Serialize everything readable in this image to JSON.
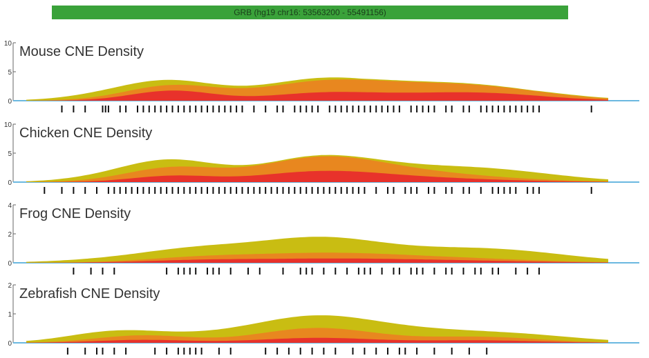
{
  "header": {
    "title": "GRB (hg19 chr16: 53563200 - 55491156)"
  },
  "colors": {
    "header_bg": "#3aa23a",
    "red": "#e8322b",
    "orange": "#e8871f",
    "yellow": "#c9bd12",
    "baseline": "#6ab8e0",
    "cne_mark": "#111111"
  },
  "chart_data": [
    {
      "type": "area",
      "title": "Mouse CNE Density",
      "ylim": [
        0,
        10
      ],
      "yticks": [
        "10",
        "5",
        "0"
      ],
      "x": [
        0,
        0.25,
        0.5,
        0.75,
        1
      ],
      "peaks": {
        "red": [
          [
            0.25,
            0.2,
            0.07
          ],
          [
            0.5,
            0.08,
            0.08
          ],
          [
            0.62,
            0.12,
            0.15
          ],
          [
            0.8,
            0.1,
            0.1
          ]
        ],
        "orange": [
          [
            0.25,
            0.3,
            0.08
          ],
          [
            0.5,
            0.25,
            0.1
          ],
          [
            0.62,
            0.2,
            0.15
          ],
          [
            0.78,
            0.2,
            0.12
          ]
        ],
        "yellow": [
          [
            0.15,
            0.1,
            0.08
          ],
          [
            0.25,
            0.35,
            0.08
          ],
          [
            0.5,
            0.3,
            0.1
          ],
          [
            0.62,
            0.2,
            0.16
          ],
          [
            0.8,
            0.18,
            0.12
          ]
        ]
      },
      "cne_marks": [
        0.06,
        0.08,
        0.1,
        0.13,
        0.135,
        0.14,
        0.16,
        0.17,
        0.19,
        0.2,
        0.21,
        0.22,
        0.23,
        0.24,
        0.25,
        0.26,
        0.27,
        0.28,
        0.29,
        0.3,
        0.31,
        0.32,
        0.33,
        0.34,
        0.35,
        0.36,
        0.37,
        0.39,
        0.41,
        0.43,
        0.44,
        0.46,
        0.47,
        0.48,
        0.49,
        0.5,
        0.52,
        0.53,
        0.54,
        0.55,
        0.56,
        0.57,
        0.58,
        0.59,
        0.6,
        0.61,
        0.62,
        0.63,
        0.64,
        0.66,
        0.67,
        0.68,
        0.69,
        0.7,
        0.72,
        0.73,
        0.75,
        0.76,
        0.78,
        0.79,
        0.8,
        0.81,
        0.82,
        0.83,
        0.84,
        0.85,
        0.86,
        0.87,
        0.88,
        0.97
      ]
    },
    {
      "type": "area",
      "title": "Chicken CNE Density",
      "ylim": [
        0,
        10
      ],
      "yticks": [
        "10",
        "5",
        "0"
      ],
      "x": [
        0,
        0.25,
        0.5,
        0.75,
        1
      ],
      "peaks": {
        "red": [
          [
            0.25,
            0.12,
            0.07
          ],
          [
            0.5,
            0.15,
            0.1
          ],
          [
            0.62,
            0.1,
            0.16
          ]
        ],
        "orange": [
          [
            0.25,
            0.28,
            0.08
          ],
          [
            0.5,
            0.35,
            0.1
          ],
          [
            0.62,
            0.22,
            0.16
          ]
        ],
        "yellow": [
          [
            0.15,
            0.08,
            0.08
          ],
          [
            0.25,
            0.4,
            0.08
          ],
          [
            0.5,
            0.4,
            0.1
          ],
          [
            0.65,
            0.2,
            0.16
          ],
          [
            0.8,
            0.15,
            0.12
          ]
        ]
      },
      "cne_marks": [
        0.03,
        0.06,
        0.08,
        0.1,
        0.12,
        0.14,
        0.15,
        0.16,
        0.17,
        0.18,
        0.19,
        0.2,
        0.21,
        0.22,
        0.23,
        0.24,
        0.25,
        0.26,
        0.27,
        0.28,
        0.29,
        0.3,
        0.31,
        0.32,
        0.33,
        0.34,
        0.35,
        0.36,
        0.37,
        0.38,
        0.39,
        0.4,
        0.41,
        0.42,
        0.43,
        0.44,
        0.45,
        0.46,
        0.47,
        0.48,
        0.49,
        0.5,
        0.51,
        0.52,
        0.53,
        0.54,
        0.55,
        0.56,
        0.57,
        0.58,
        0.6,
        0.62,
        0.63,
        0.65,
        0.66,
        0.67,
        0.69,
        0.7,
        0.72,
        0.73,
        0.75,
        0.76,
        0.78,
        0.8,
        0.81,
        0.82,
        0.83,
        0.84,
        0.86,
        0.87,
        0.88,
        0.97
      ]
    },
    {
      "type": "area",
      "title": "Frog CNE Density",
      "ylim": [
        0,
        4
      ],
      "yticks": [
        "4",
        "2",
        "0"
      ],
      "x": [
        0,
        0.25,
        0.5,
        0.75,
        1
      ],
      "peaks": {
        "red": [
          [
            0.3,
            0.05,
            0.1
          ],
          [
            0.5,
            0.06,
            0.12
          ],
          [
            0.7,
            0.05,
            0.15
          ]
        ],
        "orange": [
          [
            0.3,
            0.1,
            0.1
          ],
          [
            0.5,
            0.15,
            0.12
          ],
          [
            0.7,
            0.1,
            0.15
          ]
        ],
        "yellow": [
          [
            0.15,
            0.05,
            0.1
          ],
          [
            0.3,
            0.25,
            0.1
          ],
          [
            0.5,
            0.35,
            0.1
          ],
          [
            0.65,
            0.2,
            0.18
          ],
          [
            0.82,
            0.15,
            0.12
          ]
        ]
      },
      "cne_marks": [
        0.08,
        0.11,
        0.13,
        0.15,
        0.24,
        0.26,
        0.27,
        0.28,
        0.29,
        0.31,
        0.32,
        0.33,
        0.35,
        0.38,
        0.4,
        0.44,
        0.47,
        0.48,
        0.49,
        0.51,
        0.53,
        0.55,
        0.57,
        0.58,
        0.59,
        0.61,
        0.63,
        0.64,
        0.66,
        0.67,
        0.68,
        0.7,
        0.72,
        0.73,
        0.75,
        0.77,
        0.78,
        0.8,
        0.81,
        0.84,
        0.86,
        0.88
      ]
    },
    {
      "type": "area",
      "title": "Zebrafish CNE Density",
      "ylim": [
        0,
        2
      ],
      "yticks": [
        "2",
        "1",
        "0"
      ],
      "x": [
        0,
        0.25,
        0.5,
        0.75,
        1
      ],
      "peaks": {
        "red": [
          [
            0.2,
            0.06,
            0.08
          ],
          [
            0.5,
            0.1,
            0.1
          ],
          [
            0.78,
            0.05,
            0.1
          ]
        ],
        "orange": [
          [
            0.2,
            0.15,
            0.08
          ],
          [
            0.5,
            0.3,
            0.1
          ],
          [
            0.78,
            0.12,
            0.1
          ]
        ],
        "yellow": [
          [
            0.15,
            0.2,
            0.08
          ],
          [
            0.33,
            0.15,
            0.12
          ],
          [
            0.5,
            0.45,
            0.1
          ],
          [
            0.65,
            0.15,
            0.1
          ],
          [
            0.82,
            0.18,
            0.12
          ]
        ]
      },
      "cne_marks": [
        0.07,
        0.1,
        0.12,
        0.13,
        0.15,
        0.17,
        0.22,
        0.24,
        0.26,
        0.27,
        0.28,
        0.29,
        0.3,
        0.33,
        0.35,
        0.41,
        0.43,
        0.45,
        0.47,
        0.49,
        0.51,
        0.53,
        0.56,
        0.58,
        0.6,
        0.62,
        0.64,
        0.65,
        0.67,
        0.7,
        0.73,
        0.76,
        0.79
      ]
    }
  ]
}
